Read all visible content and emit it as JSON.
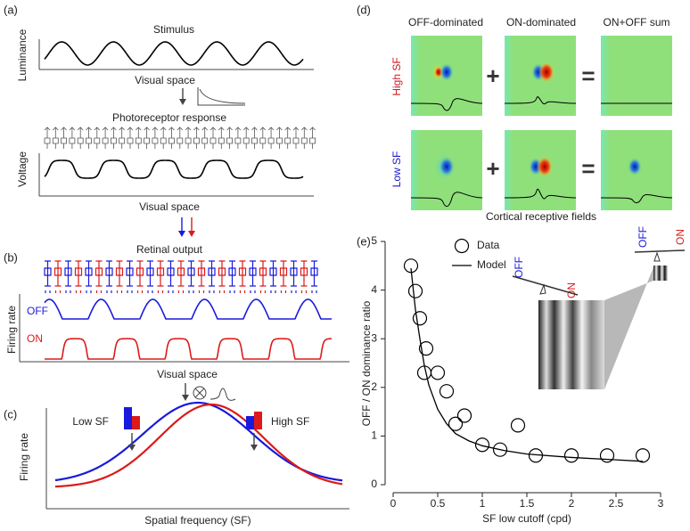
{
  "panels": {
    "a": {
      "label": "(a)",
      "stimulus": "Stimulus",
      "y_label_top": "Luminance",
      "x_label_top": "Visual space",
      "photoreceptor": "Photoreceptor response",
      "y_label_bottom": "Voltage",
      "x_label_bottom": "Visual space"
    },
    "b": {
      "label": "(b)",
      "title": "Retinal output",
      "off": "OFF",
      "on": "ON",
      "y_label": "Firing rate",
      "x_label": "Visual space"
    },
    "c": {
      "label": "(c)",
      "low": "Low SF",
      "high": "High SF",
      "y_label": "Firing rate",
      "x_label": "Spatial frequency (SF)"
    },
    "d": {
      "label": "(d)",
      "columns": [
        "OFF-dominated",
        "ON-dominated",
        "ON+OFF sum"
      ],
      "rows": [
        "High SF",
        "Low SF"
      ],
      "plus": "+",
      "equals": "=",
      "caption": "Cortical receptive fields"
    },
    "e": {
      "label": "(e)",
      "inset_off": "OFF",
      "inset_on": "ON"
    }
  },
  "chart_data": {
    "type": "scatter",
    "x_label": "SF low cutoff (cpd)",
    "y_label": "OFF / ON dominance ratio",
    "xlim": [
      0,
      3
    ],
    "xticks": [
      0,
      0.5,
      1,
      1.5,
      2,
      2.5,
      3
    ],
    "ylim": [
      0,
      5
    ],
    "yticks": [
      0,
      1,
      2,
      3,
      4,
      5
    ],
    "series": [
      {
        "name": "Data",
        "color": "#000000",
        "marker": "circle",
        "x": [
          0.2,
          0.25,
          0.3,
          0.37,
          0.35,
          0.5,
          0.6,
          0.7,
          0.8,
          1.0,
          1.2,
          1.4,
          1.6,
          2.0,
          2.4,
          2.8
        ],
        "values": [
          4.5,
          3.98,
          3.42,
          2.8,
          2.3,
          2.3,
          1.92,
          1.25,
          1.42,
          0.82,
          0.72,
          1.22,
          0.6,
          0.6,
          0.6,
          0.6
        ]
      },
      {
        "name": "Model",
        "color": "#000000",
        "marker": "line",
        "x": [
          0.2,
          0.25,
          0.3,
          0.35,
          0.4,
          0.5,
          0.6,
          0.7,
          0.85,
          1.0,
          1.25,
          1.5,
          2.0,
          2.5,
          2.8
        ],
        "values": [
          4.45,
          3.6,
          3.0,
          2.45,
          2.05,
          1.55,
          1.25,
          1.05,
          0.9,
          0.8,
          0.7,
          0.63,
          0.56,
          0.51,
          0.48
        ]
      }
    ]
  }
}
